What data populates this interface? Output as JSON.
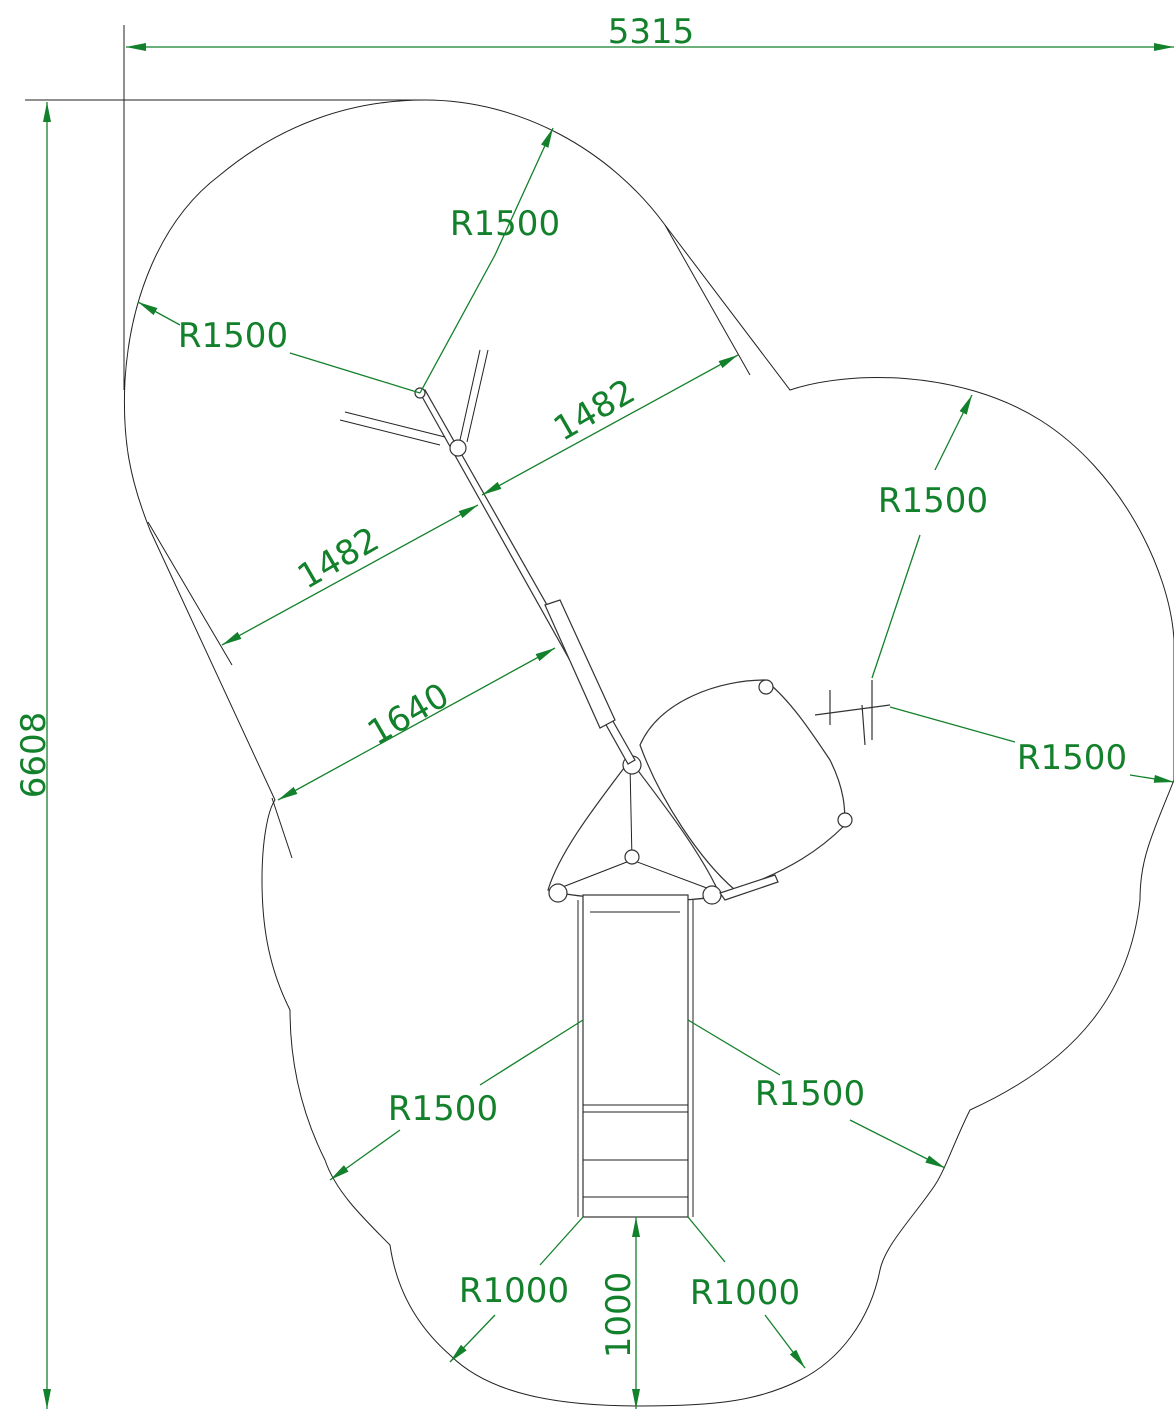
{
  "labels": [
    "5315",
    "6608",
    "R1500",
    "R1500",
    "1482",
    "1482",
    "1640",
    "R1500",
    "R1500",
    "R1500",
    "R1500",
    "R1000",
    "1000",
    "R1000"
  ]
}
